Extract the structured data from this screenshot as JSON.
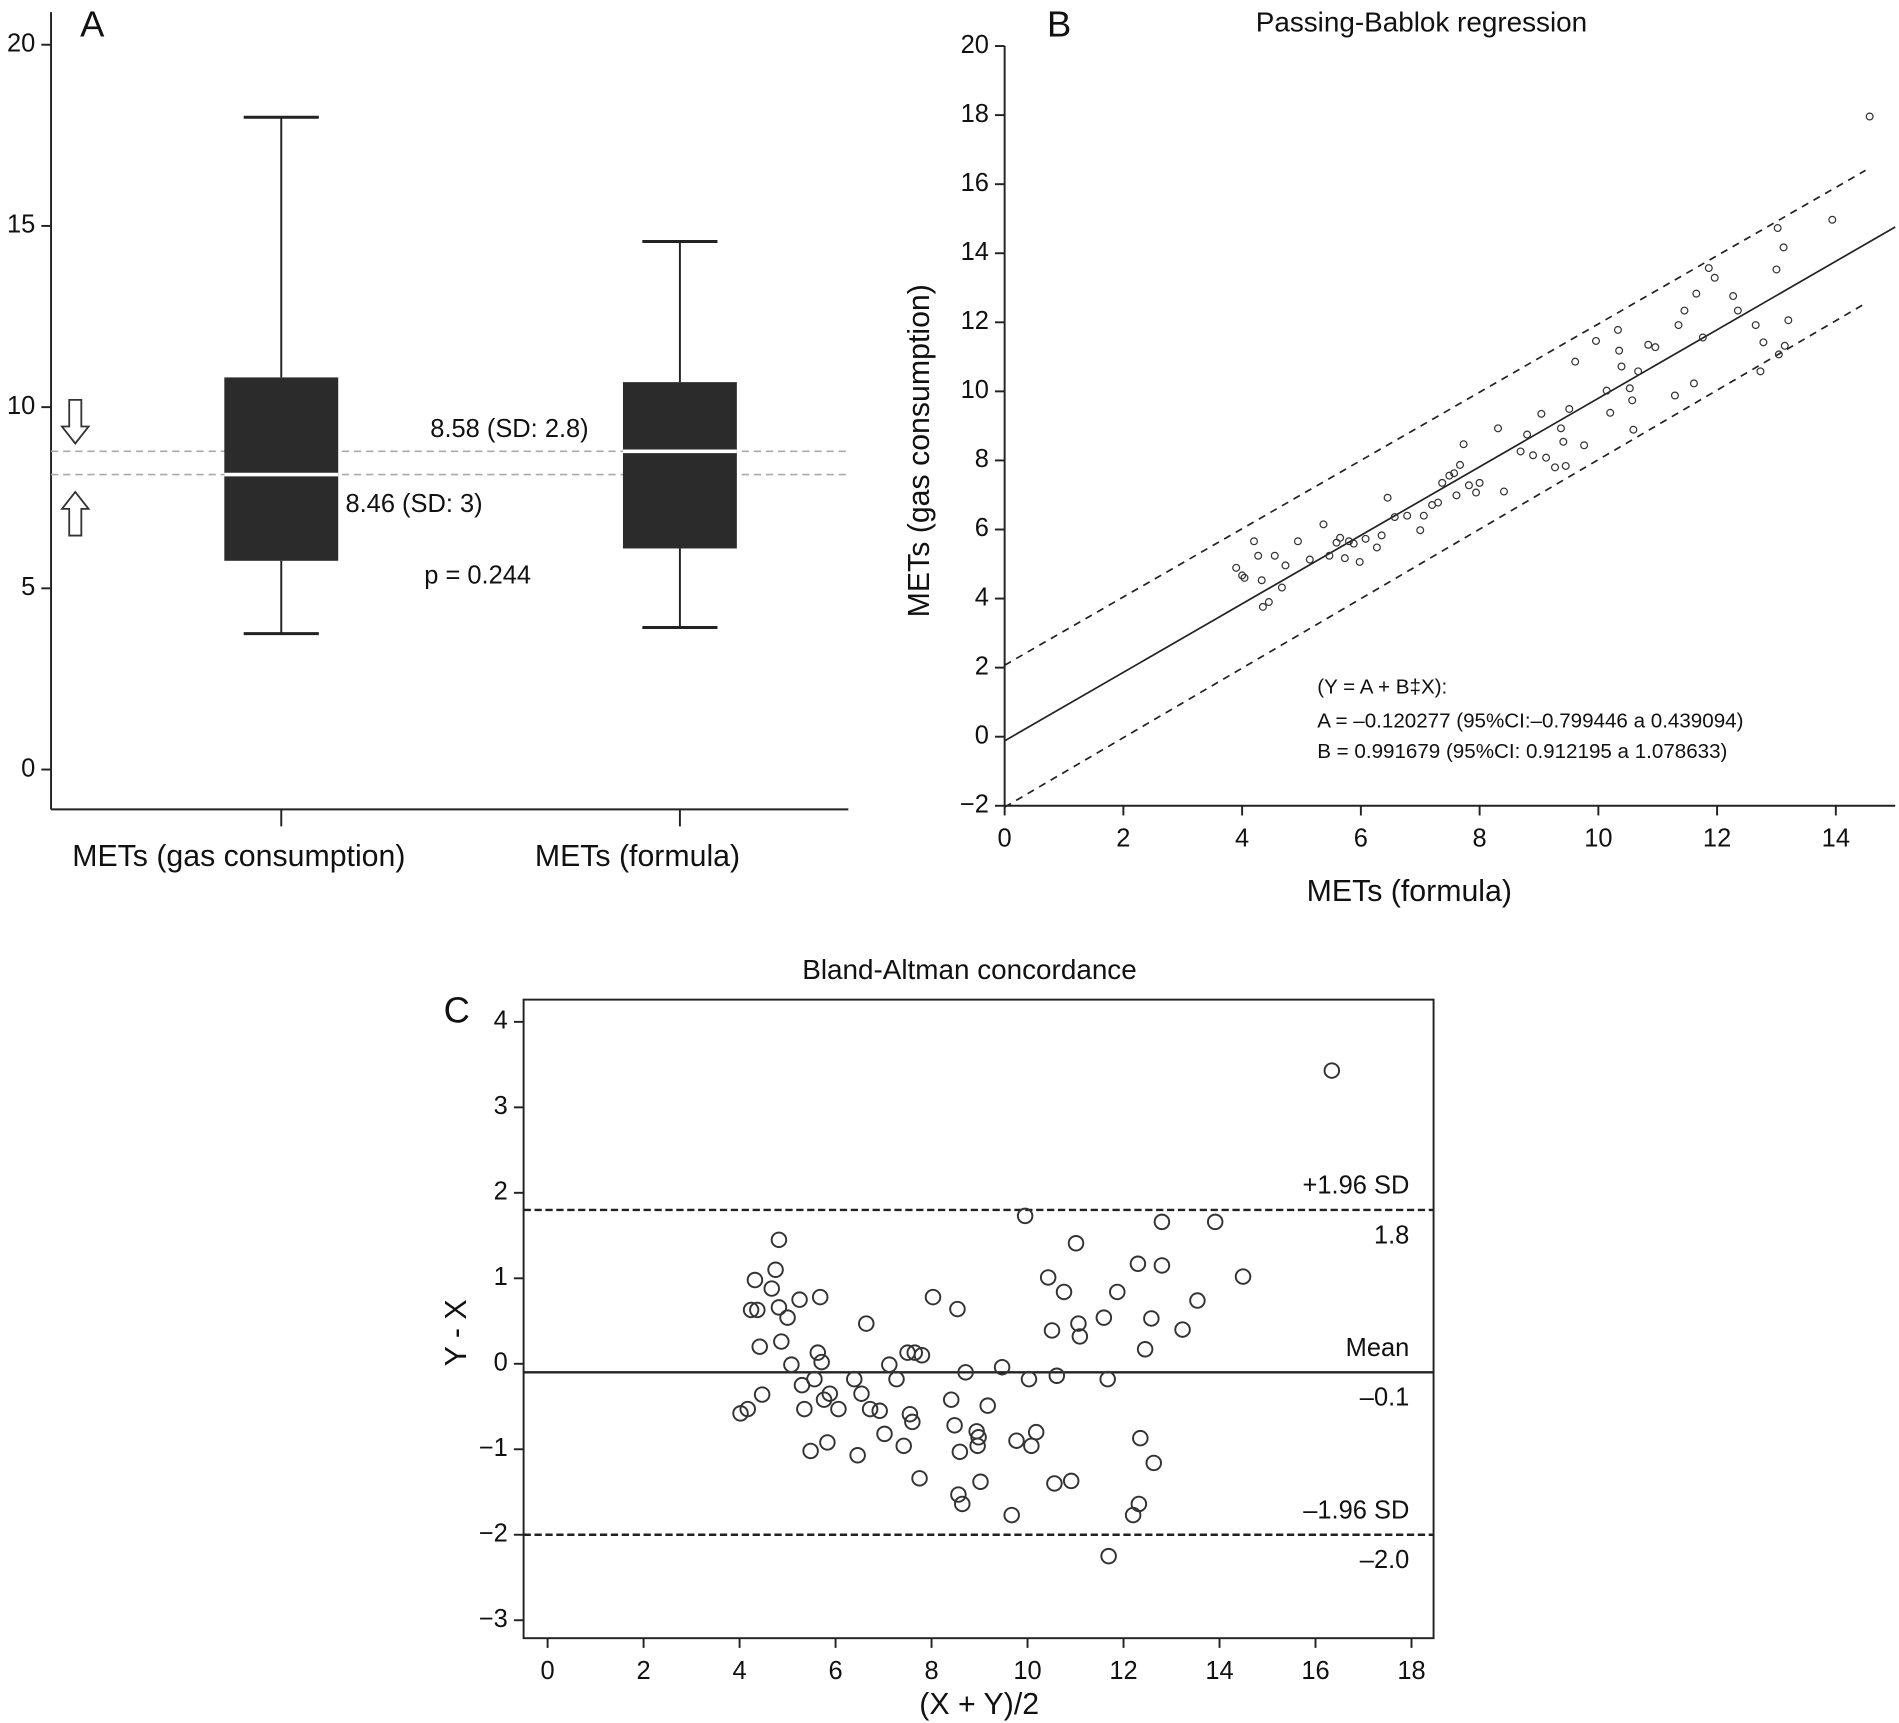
{
  "chart_data": [
    {
      "type": "box",
      "label": "A",
      "categories": [
        "METs (gas consumption)",
        "METs (formula)"
      ],
      "boxes": [
        {
          "low": 3.75,
          "q1": 5.76,
          "median": 8.14,
          "q3": 10.82,
          "high": 18
        },
        {
          "low": 3.92,
          "q1": 6.1,
          "median": 8.78,
          "q3": 10.69,
          "high": 14.57
        }
      ],
      "color": "#2b2b2b",
      "median_color": "#ffffff",
      "ylim": [
        -1.1,
        20.9
      ],
      "yticks": [
        0,
        5,
        10,
        15,
        20
      ],
      "annotations": [
        "8.58 (SD: 2.8)",
        "8.46 (SD: 3)",
        "p = 0.244"
      ]
    },
    {
      "type": "scatter",
      "label": "B",
      "title": "Passing-Bablok regression",
      "xlabel": "METs (formula)",
      "ylabel": "METs (gas consumption)",
      "x": [
        3.9,
        4.0,
        4.04,
        4.2,
        4.27,
        4.33,
        4.35,
        4.45,
        4.55,
        4.67,
        4.73,
        4.94,
        5.14,
        5.37,
        5.47,
        5.59,
        5.65,
        5.73,
        5.8,
        5.88,
        5.98,
        6.08,
        6.27,
        6.35,
        6.45,
        6.57,
        6.78,
        7.0,
        7.06,
        7.2,
        7.3,
        7.37,
        7.49,
        7.57,
        7.61,
        7.67,
        7.73,
        7.82,
        7.94,
        8.0,
        8.31,
        8.41,
        8.69,
        8.8,
        8.9,
        9.04,
        9.12,
        9.27,
        9.37,
        9.41,
        9.45,
        9.51,
        9.61,
        9.76,
        9.96,
        10.14,
        10.2,
        10.33,
        10.35,
        10.39,
        10.53,
        10.57,
        10.59,
        10.67,
        10.84,
        10.96,
        11.29,
        11.35,
        11.45,
        11.61,
        11.65,
        11.76,
        11.86,
        11.96,
        12.27,
        12.35,
        12.65,
        12.73,
        12.78,
        13.0,
        13.02,
        13.12,
        13.2,
        13.14,
        13.04,
        13.94,
        14.57
      ],
      "y": [
        4.89,
        4.67,
        4.6,
        5.66,
        5.24,
        4.53,
        3.76,
        3.9,
        5.24,
        4.32,
        4.96,
        5.66,
        5.13,
        6.15,
        5.24,
        5.62,
        5.76,
        5.17,
        5.66,
        5.59,
        5.06,
        5.73,
        5.48,
        5.83,
        6.92,
        6.36,
        6.4,
        5.98,
        6.4,
        6.71,
        6.78,
        7.35,
        7.56,
        7.63,
        6.99,
        7.87,
        8.47,
        7.28,
        7.07,
        7.35,
        8.93,
        7.1,
        8.26,
        8.75,
        8.15,
        9.35,
        8.08,
        7.8,
        8.93,
        8.54,
        7.84,
        9.49,
        10.86,
        8.44,
        11.46,
        10.02,
        9.38,
        11.78,
        11.18,
        10.72,
        10.09,
        9.74,
        8.89,
        10.58,
        11.35,
        11.28,
        9.88,
        11.92,
        12.34,
        10.23,
        12.83,
        11.56,
        13.57,
        13.29,
        12.76,
        12.34,
        11.92,
        10.58,
        11.42,
        13.53,
        14.73,
        14.17,
        12.06,
        11.32,
        11.07,
        14.97,
        17.96
      ],
      "color": "#333333",
      "lines": [
        {
          "style": "solid",
          "x": [
            0,
            15
          ],
          "y": [
            -0.12,
            14.76
          ]
        },
        {
          "style": "dashed",
          "x": [
            0,
            14.5
          ],
          "y": [
            2.07,
            16.4
          ]
        },
        {
          "style": "dashed",
          "x": [
            0,
            14.5
          ],
          "y": [
            -2.04,
            12.55
          ]
        }
      ],
      "xlim": [
        0,
        15
      ],
      "ylim": [
        -2,
        20
      ],
      "xticks": [
        0,
        2,
        4,
        6,
        8,
        10,
        12,
        14
      ],
      "yticks": [
        {
          "value": -2,
          "label": "−2"
        },
        0,
        2,
        4,
        6,
        8,
        10,
        12,
        14,
        16,
        18,
        20
      ],
      "annotations": [
        "(Y = A + B‡X):",
        "A = –0.120277 (95%CI:–0.799446 a 0.439094)",
        "B = 0.991679 (95%CI: 0.912195 a 1.078633)"
      ]
    },
    {
      "type": "bland-altman",
      "label": "C",
      "title": "Bland-Altman concordance",
      "xlabel": "(X + Y)/2",
      "ylabel": "Y - X",
      "x": [
        4.02,
        4.17,
        4.24,
        4.32,
        4.37,
        4.42,
        4.47,
        4.67,
        4.75,
        4.82,
        4.82,
        4.87,
        5.0,
        5.08,
        5.25,
        5.3,
        5.35,
        5.48,
        5.56,
        5.63,
        5.68,
        5.71,
        5.76,
        5.83,
        5.88,
        6.06,
        6.39,
        6.46,
        6.54,
        6.64,
        6.72,
        6.92,
        7.02,
        7.12,
        7.27,
        7.42,
        7.5,
        7.55,
        7.6,
        7.65,
        7.75,
        7.8,
        8.03,
        8.41,
        8.48,
        8.54,
        8.56,
        8.59,
        8.64,
        8.71,
        8.94,
        8.96,
        8.98,
        9.02,
        9.17,
        9.47,
        9.67,
        9.77,
        9.95,
        10.03,
        10.08,
        10.18,
        10.43,
        10.51,
        10.56,
        10.61,
        10.76,
        10.91,
        11.01,
        11.06,
        11.09,
        11.59,
        11.67,
        11.69,
        11.87,
        12.2,
        12.3,
        12.32,
        12.35,
        12.45,
        12.58,
        12.63,
        12.8,
        12.8,
        13.23,
        13.54,
        13.91,
        14.49,
        16.34
      ],
      "y": [
        -0.58,
        -0.53,
        0.63,
        0.98,
        0.63,
        0.2,
        -0.36,
        0.88,
        1.1,
        1.45,
        0.66,
        0.26,
        0.54,
        -0.01,
        0.75,
        -0.25,
        -0.53,
        -1.02,
        -0.18,
        0.13,
        0.78,
        0.02,
        -0.42,
        -0.92,
        -0.35,
        -0.53,
        -0.18,
        -1.07,
        -0.35,
        0.47,
        -0.53,
        -0.55,
        -0.82,
        -0.01,
        -0.18,
        -0.96,
        0.13,
        -0.59,
        -0.68,
        0.13,
        -1.34,
        0.1,
        0.78,
        -0.42,
        -0.72,
        0.64,
        -1.53,
        -1.03,
        -1.64,
        -0.1,
        -0.79,
        -0.96,
        -0.86,
        -1.38,
        -0.49,
        -0.04,
        -1.77,
        -0.9,
        1.73,
        -0.18,
        -0.96,
        -0.8,
        1.01,
        0.39,
        -1.4,
        -0.14,
        0.84,
        -1.37,
        1.41,
        0.47,
        0.32,
        0.54,
        -0.18,
        -2.25,
        0.84,
        -1.77,
        1.17,
        -1.64,
        -0.87,
        0.17,
        0.53,
        -1.16,
        1.66,
        1.15,
        0.4,
        0.74,
        1.66,
        1.02,
        3.43
      ],
      "color": "#333333",
      "lines": [
        {
          "name": "+1.96 SD",
          "value": 1.8,
          "style": "dashed"
        },
        {
          "name": "Mean",
          "value": -0.1,
          "value_label": "–0.1",
          "style": "solid"
        },
        {
          "name": "–1.96 SD",
          "value": -2.0,
          "value_label": "–2.0",
          "style": "dashed"
        }
      ],
      "xlim": [
        -0.5,
        18.46
      ],
      "ylim": [
        -3.21,
        4.26
      ],
      "xticks": [
        0,
        2,
        4,
        6,
        8,
        10,
        12,
        14,
        16,
        18
      ],
      "yticks": [
        {
          "value": -3,
          "label": "−3"
        },
        {
          "value": -2,
          "label": "−2"
        },
        {
          "value": -1,
          "label": "−1"
        },
        0,
        1,
        2,
        3,
        4
      ]
    }
  ]
}
